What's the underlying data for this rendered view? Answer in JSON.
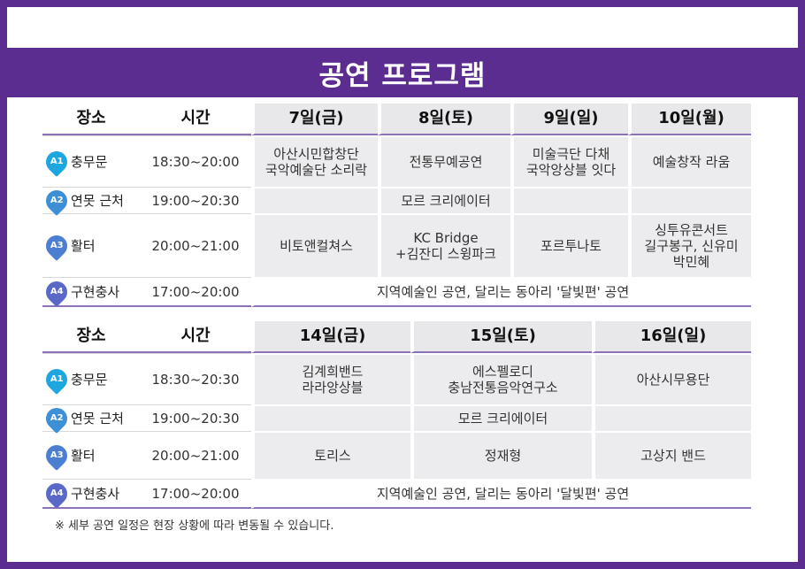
{
  "title": "공연 프로그램",
  "headers": {
    "place": "장소",
    "time": "시간"
  },
  "venues": [
    {
      "badge": "A1",
      "name": "충무문"
    },
    {
      "badge": "A2",
      "name": "연못 근처"
    },
    {
      "badge": "A3",
      "name": "활터"
    },
    {
      "badge": "A4",
      "name": "구현충사"
    }
  ],
  "week1": {
    "days": [
      "7일(금)",
      "8일(토)",
      "9일(일)",
      "10일(월)"
    ],
    "times": [
      "18:30~20:00",
      "19:00~20:30",
      "20:00~21:00",
      "17:00~20:00"
    ],
    "row1": [
      "아산시민합창단\n국악예술단 소리락",
      "전통무예공연",
      "미술극단 다채\n국악앙상블 잇다",
      "예술창작 라움"
    ],
    "row2_mid": "모르 크리에이터",
    "row3": [
      "비토앤컬쳐스",
      "KC Bridge\n+김잔디 스윙파크",
      "포르투나토",
      "싱투유콘서트\n길구봉구, 신유미\n박민혜"
    ],
    "row4": "지역예술인 공연, 달리는 동아리 '달빛편' 공연"
  },
  "week2": {
    "days": [
      "14일(금)",
      "15일(토)",
      "16일(일)"
    ],
    "times": [
      "18:30~20:30",
      "19:00~20:30",
      "20:00~21:00",
      "17:00~20:00"
    ],
    "row1": [
      "김계희밴드\n라라앙상블",
      "에스펠로디\n충남전통음악연구소",
      "아산시무용단"
    ],
    "row2_mid": "모르 크리에이터",
    "row3": [
      "토리스",
      "정재형",
      "고상지 밴드"
    ],
    "row4": "지역예술인 공연, 달리는 동아리 '달빛편' 공연"
  },
  "note": "※ 세부 공연 일정은 현장 상황에 따라 변동될 수 있습니다.",
  "colors": {
    "brand": "#5c2d91",
    "cell": "#ececee",
    "pin": "#1da6e0"
  }
}
